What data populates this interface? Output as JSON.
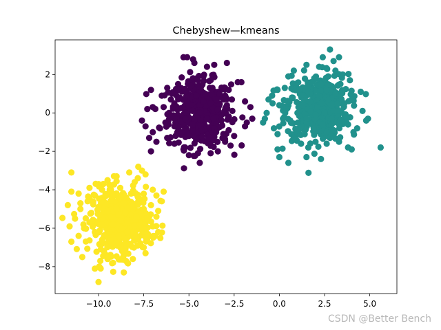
{
  "chart_data": {
    "type": "scatter",
    "title": "Chebyshew—kmeans",
    "xlabel": "",
    "ylabel": "",
    "xlim": [
      -12.4,
      6.5
    ],
    "ylim": [
      -9.4,
      3.8
    ],
    "xticks": [
      -10.0,
      -7.5,
      -5.0,
      -2.5,
      0.0,
      2.5,
      5.0
    ],
    "xtick_labels": [
      "−10.0",
      "−7.5",
      "−5.0",
      "−2.5",
      "0.0",
      "2.5",
      "5.0"
    ],
    "yticks": [
      -8,
      -6,
      -4,
      -2,
      0,
      2
    ],
    "ytick_labels": [
      "−8",
      "−6",
      "−4",
      "−2",
      "0",
      "2"
    ],
    "grid": false,
    "legend": "none",
    "clusters": [
      {
        "color": "#440154",
        "center": [
          -4.4,
          0.0
        ],
        "points": [
          [
            -4.4,
            0.0
          ],
          [
            -5.6,
            1.5
          ],
          [
            -5.3,
            2.9
          ],
          [
            -5.1,
            2.9
          ],
          [
            -4.7,
            2.6
          ],
          [
            -4.0,
            2.4
          ],
          [
            -3.6,
            2.5
          ],
          [
            -2.9,
            2.6
          ],
          [
            -2.3,
            1.6
          ],
          [
            -2.1,
            1.6
          ],
          [
            -3.0,
            1.3
          ],
          [
            -2.8,
            1.2
          ],
          [
            -6.2,
            1.3
          ],
          [
            -7.1,
            1.2
          ],
          [
            -6.0,
            0.7
          ],
          [
            -7.3,
            0.2
          ],
          [
            -7.0,
            0.3
          ],
          [
            -1.9,
            0.6
          ],
          [
            -1.6,
            0.3
          ],
          [
            -1.8,
            -0.5
          ],
          [
            -1.5,
            -0.3
          ],
          [
            -1.9,
            -0.7
          ],
          [
            -7.6,
            -0.4
          ],
          [
            -7.4,
            -0.7
          ],
          [
            -7.0,
            -1.0
          ],
          [
            -6.8,
            -1.5
          ],
          [
            -7.2,
            -1.3
          ],
          [
            -7.1,
            -2.0
          ],
          [
            -6.2,
            -1.3
          ],
          [
            -5.8,
            -1.6
          ],
          [
            -5.3,
            -1.9
          ],
          [
            -5.0,
            -2.2
          ],
          [
            -4.5,
            -2.1
          ],
          [
            -4.4,
            -2.6
          ],
          [
            -3.8,
            -2.1
          ],
          [
            -3.4,
            -2.0
          ],
          [
            -3.0,
            -1.5
          ],
          [
            -2.7,
            -1.7
          ],
          [
            -2.5,
            -1.2
          ],
          [
            -6.5,
            0.9
          ],
          [
            -6.3,
            -0.5
          ],
          [
            -6.1,
            0.0
          ],
          [
            -5.5,
            0.8
          ],
          [
            -5.2,
            1.1
          ],
          [
            -5.0,
            0.4
          ],
          [
            -4.8,
            -0.6
          ],
          [
            -4.6,
            0.9
          ],
          [
            -4.2,
            0.6
          ],
          [
            -4.0,
            -0.3
          ],
          [
            -3.8,
            0.5
          ],
          [
            -3.6,
            -0.8
          ],
          [
            -3.4,
            0.2
          ],
          [
            -3.2,
            -0.4
          ],
          [
            -3.0,
            0.9
          ],
          [
            -2.8,
            -0.9
          ],
          [
            -2.6,
            0.1
          ],
          [
            -5.8,
            -0.7
          ],
          [
            -5.6,
            0.2
          ],
          [
            -5.4,
            -1.0
          ],
          [
            -5.2,
            -0.3
          ],
          [
            -5.0,
            -1.2
          ],
          [
            -4.8,
            0.1
          ],
          [
            -4.6,
            -1.4
          ],
          [
            -4.3,
            -0.9
          ],
          [
            -4.1,
            1.0
          ],
          [
            -3.9,
            -1.3
          ],
          [
            -3.7,
            1.3
          ],
          [
            -3.5,
            -1.0
          ],
          [
            -3.3,
            1.0
          ],
          [
            -3.1,
            -1.1
          ],
          [
            -2.9,
            0.4
          ],
          [
            -4.9,
            1.4
          ],
          [
            -4.5,
            1.7
          ],
          [
            -4.2,
            1.9
          ],
          [
            -3.8,
            1.7
          ],
          [
            -5.6,
            1.2
          ],
          [
            -6.0,
            -0.2
          ],
          [
            -6.4,
            0.3
          ],
          [
            -6.6,
            -0.8
          ]
        ]
      },
      {
        "color": "#21918c",
        "center": [
          2.1,
          0.3
        ],
        "points": [
          [
            2.1,
            0.3
          ],
          [
            2.8,
            3.3
          ],
          [
            2.4,
            2.9
          ],
          [
            3.0,
            2.7
          ],
          [
            3.3,
            2.9
          ],
          [
            2.2,
            2.4
          ],
          [
            1.5,
            2.5
          ],
          [
            0.8,
            2.2
          ],
          [
            0.5,
            1.9
          ],
          [
            0.3,
            1.3
          ],
          [
            -0.1,
            1.2
          ],
          [
            -0.4,
            0.9
          ],
          [
            -0.6,
            0.7
          ],
          [
            -0.7,
            0.0
          ],
          [
            -0.9,
            -0.5
          ],
          [
            -0.8,
            -0.3
          ],
          [
            -0.3,
            -0.8
          ],
          [
            -0.1,
            -1.1
          ],
          [
            -0.1,
            -1.9
          ],
          [
            0.0,
            -2.3
          ],
          [
            0.5,
            -2.6
          ],
          [
            1.5,
            -2.3
          ],
          [
            2.3,
            -2.4
          ],
          [
            1.2,
            -1.6
          ],
          [
            2.0,
            -1.5
          ],
          [
            2.8,
            -1.3
          ],
          [
            3.3,
            -1.5
          ],
          [
            3.8,
            -1.8
          ],
          [
            4.0,
            -1.9
          ],
          [
            4.1,
            -1.0
          ],
          [
            3.8,
            -0.6
          ],
          [
            4.3,
            -0.8
          ],
          [
            4.9,
            -0.3
          ],
          [
            4.8,
            -0.4
          ],
          [
            5.6,
            -1.8
          ],
          [
            4.6,
            0.1
          ],
          [
            4.0,
            0.7
          ],
          [
            4.5,
            1.1
          ],
          [
            3.9,
            1.7
          ],
          [
            3.5,
            2.0
          ],
          [
            3.1,
            2.2
          ],
          [
            2.7,
            1.9
          ],
          [
            1.8,
            1.6
          ],
          [
            1.1,
            1.2
          ],
          [
            0.7,
            0.8
          ],
          [
            0.4,
            0.2
          ],
          [
            0.6,
            -0.4
          ],
          [
            1.0,
            -0.9
          ],
          [
            1.4,
            -1.1
          ],
          [
            1.9,
            -0.8
          ],
          [
            2.4,
            -0.6
          ],
          [
            2.9,
            -0.3
          ],
          [
            3.3,
            0.1
          ],
          [
            3.6,
            0.5
          ],
          [
            3.1,
            1.0
          ],
          [
            2.6,
            1.2
          ],
          [
            2.2,
            0.9
          ],
          [
            1.7,
            0.6
          ],
          [
            1.3,
            0.4
          ],
          [
            1.0,
            0.0
          ],
          [
            1.5,
            -0.3
          ],
          [
            2.0,
            -0.1
          ],
          [
            2.5,
            0.0
          ],
          [
            2.9,
            0.4
          ],
          [
            3.4,
            -0.4
          ],
          [
            1.2,
            0.9
          ],
          [
            1.6,
            1.1
          ],
          [
            2.3,
            1.5
          ],
          [
            2.7,
            0.7
          ],
          [
            3.7,
            -0.2
          ],
          [
            0.8,
            -1.3
          ],
          [
            1.6,
            -1.8
          ],
          [
            2.6,
            -1.0
          ],
          [
            3.0,
            -0.9
          ],
          [
            0.2,
            -0.3
          ],
          [
            0.0,
            0.4
          ]
        ]
      },
      {
        "color": "#fde725",
        "center": [
          -8.8,
          -5.6
        ],
        "points": [
          [
            -8.8,
            -5.6
          ],
          [
            -11.5,
            -3.1
          ],
          [
            -11.5,
            -4.1
          ],
          [
            -11.7,
            -4.8
          ],
          [
            -11.1,
            -4.2
          ],
          [
            -10.5,
            -3.9
          ],
          [
            -10.0,
            -3.7
          ],
          [
            -9.5,
            -3.5
          ],
          [
            -9.0,
            -3.3
          ],
          [
            -8.3,
            -3.1
          ],
          [
            -7.8,
            -2.8
          ],
          [
            -7.6,
            -3.0
          ],
          [
            -7.4,
            -3.2
          ],
          [
            -7.0,
            -4.0
          ],
          [
            -6.8,
            -4.3
          ],
          [
            -6.4,
            -4.1
          ],
          [
            -6.5,
            -4.6
          ],
          [
            -6.7,
            -5.1
          ],
          [
            -6.8,
            -5.4
          ],
          [
            -7.0,
            -5.9
          ],
          [
            -6.7,
            -6.2
          ],
          [
            -7.2,
            -6.4
          ],
          [
            -7.5,
            -7.0
          ],
          [
            -7.4,
            -7.3
          ],
          [
            -8.1,
            -7.6
          ],
          [
            -8.4,
            -7.8
          ],
          [
            -8.6,
            -8.3
          ],
          [
            -9.2,
            -7.8
          ],
          [
            -9.5,
            -7.6
          ],
          [
            -9.9,
            -7.7
          ],
          [
            -10.2,
            -8.1
          ],
          [
            -10.0,
            -8.8
          ],
          [
            -10.9,
            -7.5
          ],
          [
            -11.5,
            -6.7
          ],
          [
            -11.1,
            -6.4
          ],
          [
            -11.6,
            -5.9
          ],
          [
            -11.3,
            -5.5
          ],
          [
            -11.0,
            -5.0
          ],
          [
            -10.6,
            -4.6
          ],
          [
            -10.2,
            -4.3
          ],
          [
            -9.8,
            -4.0
          ],
          [
            -9.3,
            -4.1
          ],
          [
            -8.8,
            -3.9
          ],
          [
            -8.2,
            -4.2
          ],
          [
            -7.8,
            -4.6
          ],
          [
            -7.5,
            -5.0
          ],
          [
            -7.3,
            -5.5
          ],
          [
            -7.5,
            -6.0
          ],
          [
            -7.9,
            -6.4
          ],
          [
            -8.3,
            -6.8
          ],
          [
            -8.8,
            -7.0
          ],
          [
            -9.3,
            -6.9
          ],
          [
            -9.8,
            -6.6
          ],
          [
            -10.2,
            -6.2
          ],
          [
            -10.5,
            -5.7
          ],
          [
            -10.4,
            -5.2
          ],
          [
            -10.0,
            -4.9
          ],
          [
            -9.6,
            -4.7
          ],
          [
            -9.1,
            -4.6
          ],
          [
            -8.6,
            -4.7
          ],
          [
            -8.1,
            -5.0
          ],
          [
            -7.9,
            -5.4
          ],
          [
            -8.0,
            -5.9
          ],
          [
            -8.4,
            -6.2
          ],
          [
            -8.9,
            -6.4
          ],
          [
            -9.4,
            -6.2
          ],
          [
            -9.8,
            -5.8
          ],
          [
            -9.9,
            -5.3
          ],
          [
            -9.5,
            -5.1
          ],
          [
            -9.0,
            -5.0
          ],
          [
            -8.5,
            -5.2
          ],
          [
            -8.4,
            -5.7
          ],
          [
            -8.7,
            -6.0
          ],
          [
            -9.2,
            -5.8
          ],
          [
            -9.3,
            -5.4
          ],
          [
            -8.9,
            -5.3
          ],
          [
            -10.8,
            -6.0
          ],
          [
            -11.0,
            -4.7
          ],
          [
            -8.0,
            -3.6
          ],
          [
            -7.1,
            -4.8
          ],
          [
            -9.7,
            -7.2
          ],
          [
            -8.6,
            -7.4
          ]
        ]
      }
    ]
  },
  "watermark": "CSDN @Better Bench"
}
